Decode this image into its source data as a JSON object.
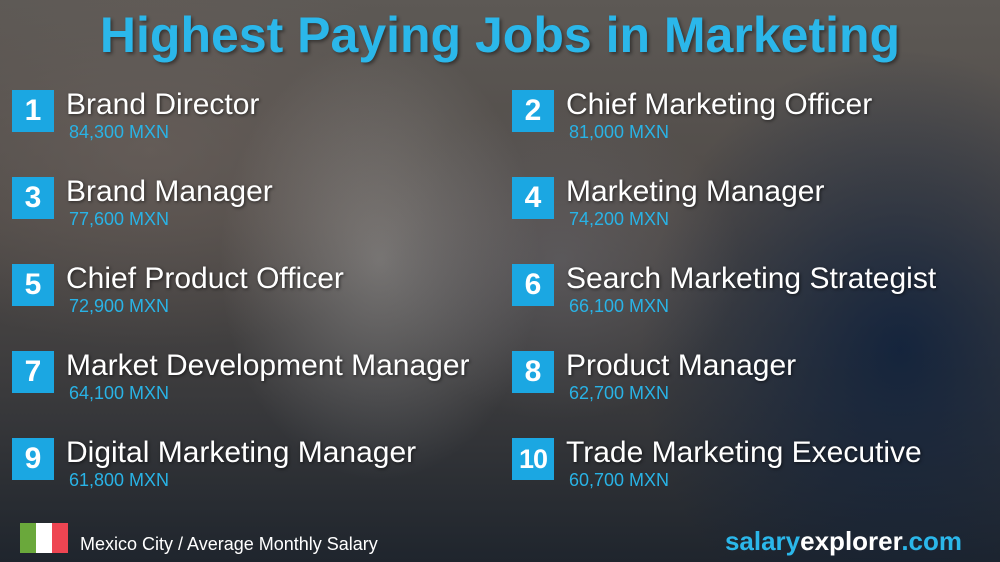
{
  "title": "Highest Paying Jobs in Marketing",
  "jobs": [
    {
      "rank": "1",
      "title": "Brand Director",
      "salary": "84,300 MXN"
    },
    {
      "rank": "2",
      "title": "Chief Marketing Officer",
      "salary": "81,000 MXN"
    },
    {
      "rank": "3",
      "title": "Brand Manager",
      "salary": "77,600 MXN"
    },
    {
      "rank": "4",
      "title": "Marketing Manager",
      "salary": "74,200 MXN"
    },
    {
      "rank": "5",
      "title": "Chief Product Officer",
      "salary": "72,900 MXN"
    },
    {
      "rank": "6",
      "title": "Search Marketing Strategist",
      "salary": "66,100 MXN"
    },
    {
      "rank": "7",
      "title": "Market Development Manager",
      "salary": "64,100 MXN"
    },
    {
      "rank": "8",
      "title": "Product Manager",
      "salary": "62,700 MXN"
    },
    {
      "rank": "9",
      "title": "Digital Marketing Manager",
      "salary": "61,800 MXN"
    },
    {
      "rank": "10",
      "title": "Trade Marketing Executive",
      "salary": "60,700 MXN"
    }
  ],
  "footer": {
    "flag": "mexico-flag",
    "caption": "Mexico City / Average Monthly Salary",
    "brand_part1": "salary",
    "brand_part2": "explorer",
    "brand_part3": ".com"
  },
  "colors": {
    "accent": "#2bb7ea",
    "badge": "#1ba7e2"
  }
}
